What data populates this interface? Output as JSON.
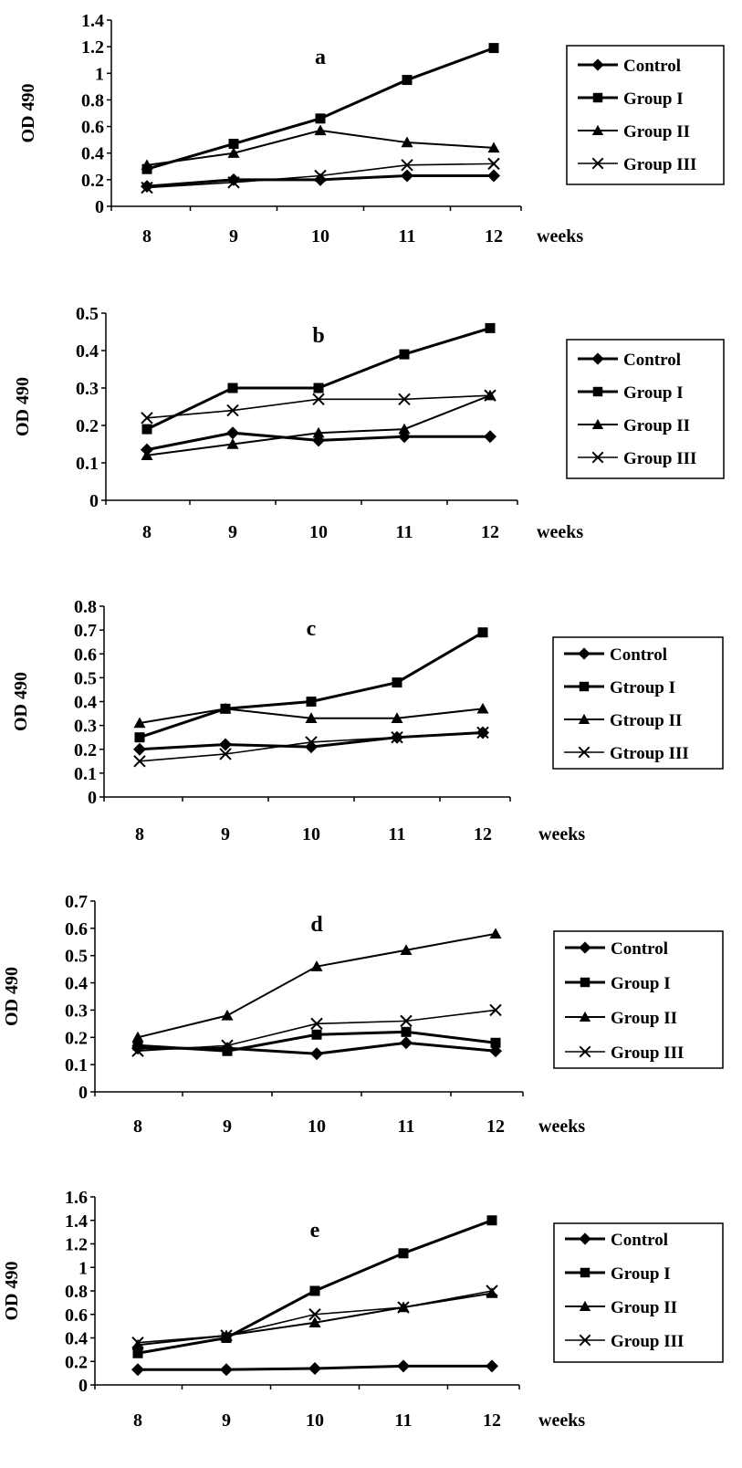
{
  "figure": {
    "background": "#ffffff",
    "ink": "#000000"
  },
  "chart_data": [
    {
      "type": "line",
      "title": "a",
      "x": [
        8,
        9,
        10,
        11,
        12
      ],
      "x_tick_labels": [
        "8",
        "9",
        "10",
        "11",
        "12"
      ],
      "xlabel": "weeks",
      "ylabel": "OD 490",
      "ylim": [
        0,
        1.4
      ],
      "y_ticks": [
        0,
        0.2,
        0.4,
        0.6,
        0.8,
        1,
        1.2,
        1.4
      ],
      "y_tick_labels": [
        "0",
        "0.2",
        "0.4",
        "0.6",
        "0.8",
        "1",
        "1.2",
        "1.4"
      ],
      "legend_position": "right",
      "grid": false,
      "series": [
        {
          "name": "Control",
          "marker": "diamond",
          "values": [
            0.15,
            0.2,
            0.2,
            0.23,
            0.23
          ]
        },
        {
          "name": "Group I",
          "marker": "square",
          "values": [
            0.28,
            0.47,
            0.66,
            0.95,
            1.19
          ]
        },
        {
          "name": "Group II",
          "marker": "triangle",
          "values": [
            0.31,
            0.4,
            0.57,
            0.48,
            0.44
          ]
        },
        {
          "name": "Group III",
          "marker": "cross",
          "values": [
            0.14,
            0.18,
            0.23,
            0.31,
            0.32
          ]
        }
      ]
    },
    {
      "type": "line",
      "title": "b",
      "x": [
        8,
        9,
        10,
        11,
        12
      ],
      "x_tick_labels": [
        "8",
        "9",
        "10",
        "11",
        "12"
      ],
      "xlabel": "weeks",
      "ylabel": "OD 490",
      "ylim": [
        0,
        0.5
      ],
      "y_ticks": [
        0,
        0.1,
        0.2,
        0.3,
        0.4,
        0.5
      ],
      "y_tick_labels": [
        "0",
        "0.1",
        "0.2",
        "0.3",
        "0.4",
        "0.5"
      ],
      "legend_position": "right",
      "grid": false,
      "series": [
        {
          "name": "Control",
          "marker": "diamond",
          "values": [
            0.135,
            0.18,
            0.16,
            0.17,
            0.17
          ]
        },
        {
          "name": "Group I",
          "marker": "square",
          "values": [
            0.19,
            0.3,
            0.3,
            0.39,
            0.46
          ]
        },
        {
          "name": "Group II",
          "marker": "triangle",
          "values": [
            0.12,
            0.15,
            0.18,
            0.19,
            0.28
          ]
        },
        {
          "name": "Group III",
          "marker": "cross",
          "values": [
            0.22,
            0.24,
            0.27,
            0.27,
            0.28
          ]
        }
      ]
    },
    {
      "type": "line",
      "title": "c",
      "x": [
        8,
        9,
        10,
        11,
        12
      ],
      "x_tick_labels": [
        "8",
        "9",
        "10",
        "11",
        "12"
      ],
      "xlabel": "weeks",
      "ylabel": "OD 490",
      "ylim": [
        0,
        0.8
      ],
      "y_ticks": [
        0,
        0.1,
        0.2,
        0.3,
        0.4,
        0.5,
        0.6,
        0.7,
        0.8
      ],
      "y_tick_labels": [
        "0",
        "0.1",
        "0.2",
        "0.3",
        "0.4",
        "0.5",
        "0.6",
        "0.7",
        "0.8"
      ],
      "legend_position": "right",
      "grid": false,
      "series": [
        {
          "name": "Control",
          "marker": "diamond",
          "values": [
            0.2,
            0.22,
            0.21,
            0.25,
            0.27
          ]
        },
        {
          "name": "Gtroup I",
          "marker": "square",
          "values": [
            0.25,
            0.37,
            0.4,
            0.48,
            0.69
          ]
        },
        {
          "name": "Gtroup II",
          "marker": "triangle",
          "values": [
            0.31,
            0.37,
            0.33,
            0.33,
            0.37
          ]
        },
        {
          "name": "Gtroup III",
          "marker": "cross",
          "values": [
            0.15,
            0.18,
            0.23,
            0.25,
            0.27
          ]
        }
      ]
    },
    {
      "type": "line",
      "title": "d",
      "x": [
        8,
        9,
        10,
        11,
        12
      ],
      "x_tick_labels": [
        "8",
        "9",
        "10",
        "11",
        "12"
      ],
      "xlabel": "weeks",
      "ylabel": "OD 490",
      "ylim": [
        0,
        0.7
      ],
      "y_ticks": [
        0,
        0.1,
        0.2,
        0.3,
        0.4,
        0.5,
        0.6,
        0.7
      ],
      "y_tick_labels": [
        "0",
        "0.1",
        "0.2",
        "0.3",
        "0.4",
        "0.5",
        "0.6",
        "0.7"
      ],
      "legend_position": "right",
      "grid": false,
      "series": [
        {
          "name": "Control",
          "marker": "diamond",
          "values": [
            0.16,
            0.16,
            0.14,
            0.18,
            0.15
          ]
        },
        {
          "name": "Group I",
          "marker": "square",
          "values": [
            0.17,
            0.15,
            0.21,
            0.22,
            0.18
          ]
        },
        {
          "name": "Group II",
          "marker": "triangle",
          "values": [
            0.2,
            0.28,
            0.46,
            0.52,
            0.58
          ]
        },
        {
          "name": "Group III",
          "marker": "cross",
          "values": [
            0.15,
            0.17,
            0.25,
            0.26,
            0.3
          ]
        }
      ]
    },
    {
      "type": "line",
      "title": "e",
      "x": [
        8,
        9,
        10,
        11,
        12
      ],
      "x_tick_labels": [
        "8",
        "9",
        "10",
        "11",
        "12"
      ],
      "xlabel": "weeks",
      "ylabel": "OD 490",
      "ylim": [
        0,
        1.6
      ],
      "y_ticks": [
        0,
        0.2,
        0.4,
        0.6,
        0.8,
        1,
        1.2,
        1.4,
        1.6
      ],
      "y_tick_labels": [
        "0",
        "0.2",
        "0.4",
        "0.6",
        "0.8",
        "1",
        "1.2",
        "1.4",
        "1.6"
      ],
      "legend_position": "right",
      "grid": false,
      "series": [
        {
          "name": "Control",
          "marker": "diamond",
          "values": [
            0.13,
            0.13,
            0.14,
            0.16,
            0.16
          ]
        },
        {
          "name": "Group I",
          "marker": "square",
          "values": [
            0.27,
            0.4,
            0.8,
            1.12,
            1.4
          ]
        },
        {
          "name": "Group II",
          "marker": "triangle",
          "values": [
            0.34,
            0.42,
            0.53,
            0.66,
            0.78
          ]
        },
        {
          "name": "Group III",
          "marker": "cross",
          "values": [
            0.36,
            0.42,
            0.6,
            0.66,
            0.8
          ]
        }
      ]
    }
  ]
}
